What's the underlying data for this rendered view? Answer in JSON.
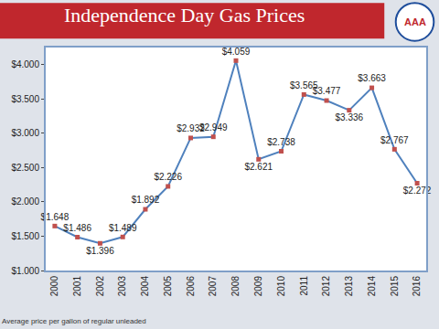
{
  "chart_data": {
    "type": "line",
    "title": "Independence Day Gas Prices",
    "footnote": "Average price per gallon of regular unleaded",
    "logo": "AAA",
    "categories": [
      "2000",
      "2001",
      "2002",
      "2003",
      "2004",
      "2005",
      "2006",
      "2007",
      "2008",
      "2009",
      "2010",
      "2011",
      "2012",
      "2013",
      "2014",
      "2015",
      "2016"
    ],
    "values": [
      1.648,
      1.486,
      1.396,
      1.489,
      1.892,
      2.226,
      2.932,
      2.949,
      4.059,
      2.621,
      2.738,
      3.565,
      3.477,
      3.336,
      3.663,
      2.767,
      2.272
    ],
    "value_labels": [
      "$1.648",
      "$1.486",
      "$1.396",
      "$1.489",
      "$1.892",
      "$2.226",
      "$2.932",
      "$2.949",
      "$4.059",
      "$2.621",
      "$2.738",
      "$3.565",
      "$3.477",
      "$3.336",
      "$3.663",
      "$2.767",
      "$2.272"
    ],
    "color": "#4f81bd",
    "marker": "square",
    "marker_color": "#c0504d",
    "data_labels": true,
    "ylim": [
      1,
      4.25
    ],
    "yticks": [
      {
        "value": 1,
        "label": "$1.000"
      },
      {
        "value": 1.5,
        "label": "$1.500"
      },
      {
        "value": 2,
        "label": "$2.000"
      },
      {
        "value": 2.5,
        "label": "$2.500"
      },
      {
        "value": 3,
        "label": "$3.000"
      },
      {
        "value": 3.5,
        "label": "$3.500"
      },
      {
        "value": 4,
        "label": "$4.000"
      }
    ],
    "grid": false
  }
}
